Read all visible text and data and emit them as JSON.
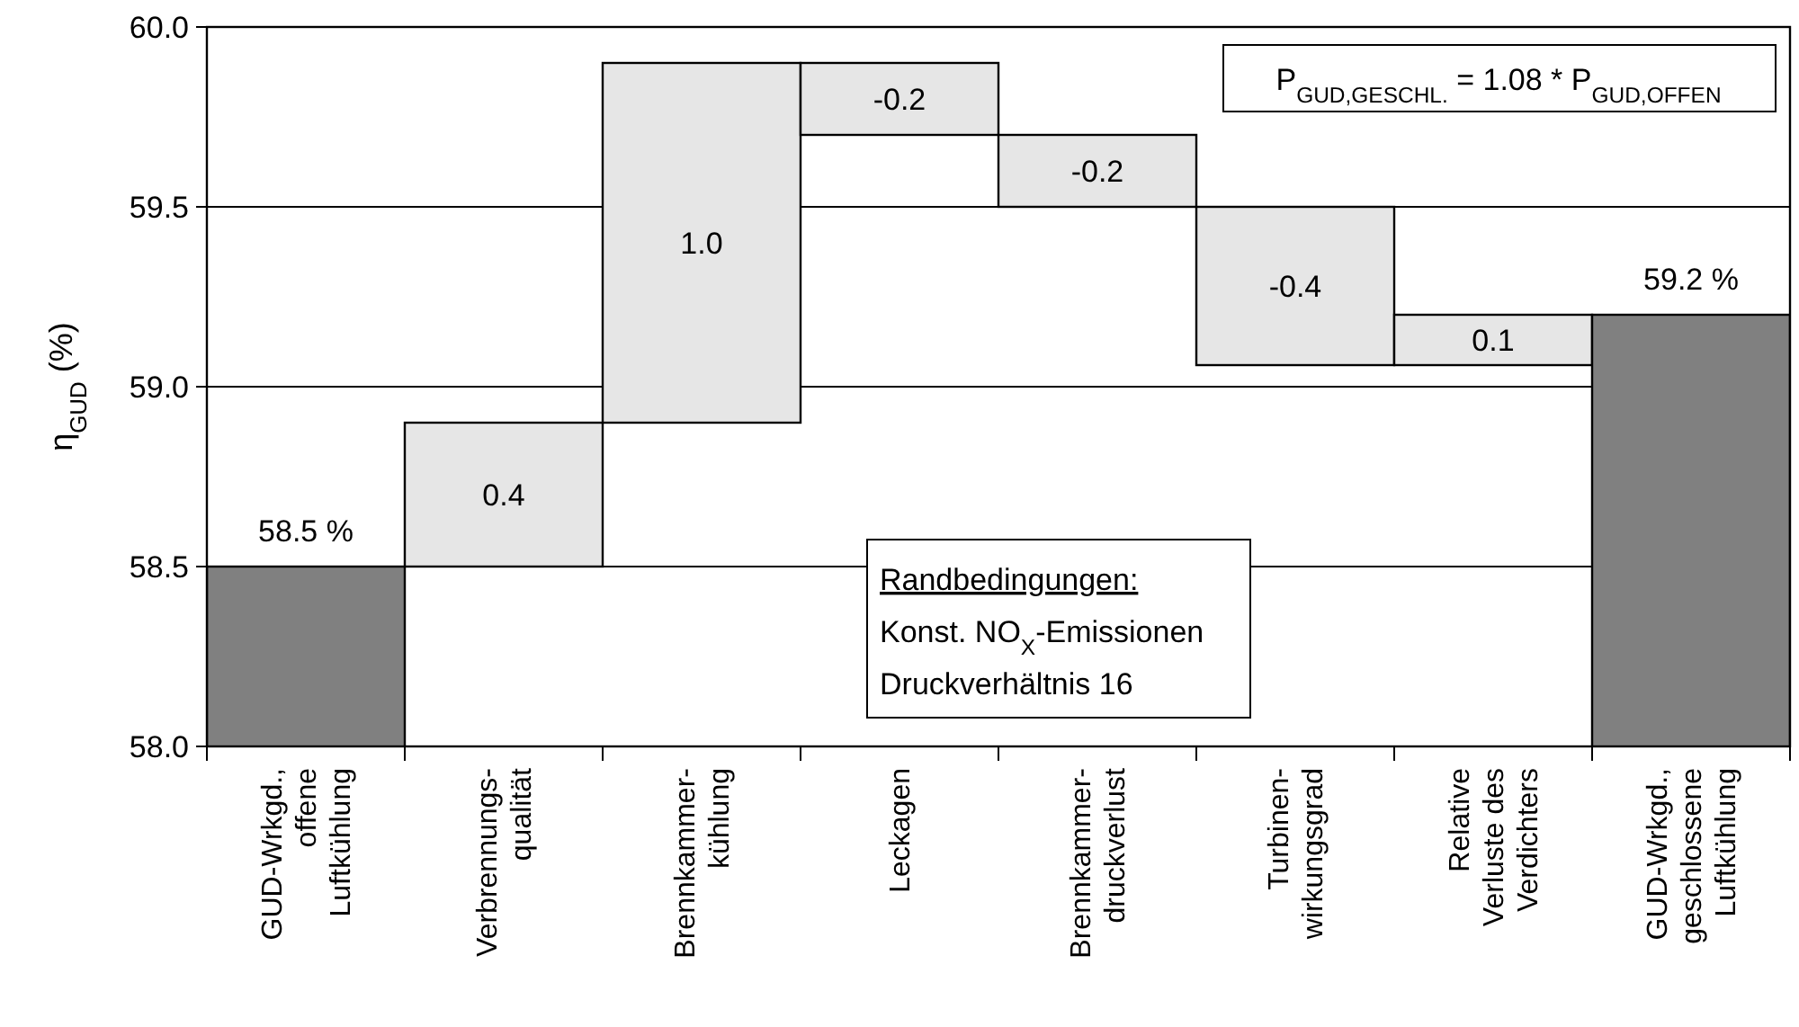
{
  "chart_data": {
    "type": "bar",
    "ylabel": "η$_{GUD}$ (%)",
    "categories": [
      "GUD-Wrkgd.,\noffene\nLuftkühlung",
      "Verbrennungs-\nqualität",
      "Brennkammer-\nkühlung",
      "Leckagen",
      "Brennkammer-\ndruckverlust",
      "Turbinen-\nwirkungsgrad",
      "Relative\nVerluste des\nVerdichters",
      "GUD-Wrkgd.,\ngeschlossene\nLuftkühlung"
    ],
    "values": [
      58.5,
      0.4,
      1.0,
      -0.2,
      -0.2,
      -0.44,
      0.14,
      59.2
    ],
    "base": [
      null,
      58.5,
      58.9,
      59.9,
      59.7,
      59.5,
      59.06,
      null
    ],
    "colors": [
      "#808080",
      "#e6e6e6",
      "#e6e6e6",
      "#e6e6e6",
      "#e6e6e6",
      "#e6e6e6",
      "#e6e6e6",
      "#808080"
    ],
    "value_labels": [
      "58.5 %",
      "0.4",
      "1.0",
      "-0.2",
      "-0.2",
      "-0.4",
      "0.1",
      "59.2 %"
    ],
    "ylim": [
      58.0,
      60.0
    ],
    "yticks": [
      {
        "value": 58,
        "label": "58.0"
      },
      58.5,
      {
        "value": 59,
        "label": "59.0"
      },
      59.5,
      {
        "value": 60,
        "label": "60.0"
      }
    ],
    "grid": "y",
    "annotations": [
      "P$_{GUD,GESCHL.}$ = 1.08 * P$_{GUD,OFFEN}$",
      "Randbedingungen:",
      "Konst. NO$_{X}$-Emissionen",
      "Druckverhältnis 16"
    ]
  }
}
